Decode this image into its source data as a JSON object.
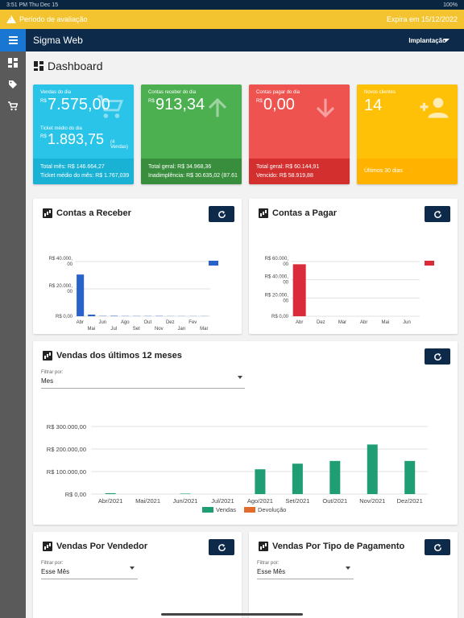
{
  "statusbar": {
    "time": "3:51 PM",
    "date": "Thu Dec 15",
    "battery": "100%"
  },
  "trial": {
    "label": "Período de avaliação",
    "expires": "Expira em 15/12/2022"
  },
  "app": {
    "title": "Sigma Web",
    "environment": "Implantação"
  },
  "sidebar": {
    "items": [
      {
        "icon": "dashboard-icon"
      },
      {
        "icon": "tag-icon"
      },
      {
        "icon": "cart-icon"
      }
    ]
  },
  "page": {
    "title": "Dashboard"
  },
  "cards": {
    "sales": {
      "label": "Vendas do dia",
      "currency": "R$",
      "value": "7.575,00",
      "ticket_label": "Ticket médio do dia",
      "ticket_value": "1.893,75",
      "ticket_extra": "(4 Vendas)",
      "foot1": "Total mês: R$ 146.664,27",
      "foot2": "Ticket médio do mês: R$ 1.767,039",
      "color": "#29c4e8",
      "foot_color": "#1ab2d4"
    },
    "receivable": {
      "label": "Contas receber do dia",
      "currency": "R$",
      "value": "913,34",
      "foot1": "Total geral: R$ 34.968,36",
      "foot2": "Inadimplência: R$ 30.635,02 (87.61",
      "color": "#4caf50",
      "foot_color": "#388e3c"
    },
    "payable": {
      "label": "Contas pagar do dia",
      "currency": "R$",
      "value": "0,00",
      "foot1": "Total geral: R$ 60.144,91",
      "foot2": "Vencido: R$ 58.919,88",
      "color": "#ef5350",
      "foot_color": "#d32f2f"
    },
    "clients": {
      "label": "Novos clientes",
      "value": "14",
      "foot1": "Últimos 30 dias",
      "color": "#ffc107",
      "foot_color": "#ffb300"
    }
  },
  "receber": {
    "title": "Contas a Receber",
    "chart_data": {
      "type": "bar",
      "categories": [
        "Abr",
        "Mai",
        "Jun",
        "Jul",
        "Ago",
        "Set",
        "Out",
        "Nov",
        "Dez",
        "Jan",
        "Fev",
        "Mar"
      ],
      "tick_labels": [
        "R$ 0,00",
        "R$ 20.000,00",
        "R$ 40.000,00"
      ],
      "values": [
        30500,
        1200,
        200,
        300,
        150,
        150,
        150,
        200,
        100,
        100,
        100,
        100
      ],
      "ylim": [
        0,
        40000
      ],
      "color": "#2962c8"
    }
  },
  "pagar": {
    "title": "Contas a Pagar",
    "chart_data": {
      "type": "bar",
      "categories": [
        "Abr",
        "Mai",
        "Jun",
        "Dez",
        "Mar",
        "Abr",
        "Mai",
        "Jun"
      ],
      "tick_labels": [
        "R$ 0,00",
        "R$ 20.000,00",
        "R$ 40.000,00",
        "R$ 60.000,00"
      ],
      "values": [
        57000,
        0,
        0,
        0,
        0,
        0,
        0,
        0
      ],
      "ylim": [
        0,
        60000
      ],
      "color": "#d92b3a"
    }
  },
  "vendas12": {
    "title": "Vendas dos últimos 12 meses",
    "filter_label": "Filtrar por:",
    "filter_value": "Mes",
    "chart_data": {
      "type": "bar",
      "categories": [
        "Abr/2021",
        "Mai/2021",
        "Jun/2021",
        "Jul/2021",
        "Ago/2021",
        "Set/2021",
        "Out/2021",
        "Nov/2021",
        "Dez/2021"
      ],
      "tick_labels": [
        "R$ 0,00",
        "R$ 100.000,00",
        "R$ 200.000,00",
        "R$ 300.000,00"
      ],
      "ylim": [
        0,
        300000
      ],
      "series": [
        {
          "name": "Vendas",
          "color": "#1f9d74",
          "values": [
            4000,
            0,
            2000,
            0,
            110000,
            135000,
            147000,
            220000,
            147000
          ]
        },
        {
          "name": "Devolução",
          "color": "#e36b2c",
          "values": [
            0,
            0,
            0,
            0,
            0,
            0,
            0,
            0,
            0
          ]
        }
      ]
    }
  },
  "vendedor": {
    "title": "Vendas Por Vendedor",
    "filter_label": "Filtrar por:",
    "filter_value": "Esse Mês"
  },
  "pagamento": {
    "title": "Vendas Por Tipo de Pagamento",
    "filter_label": "Filtrar por:",
    "filter_value": "Esse Mês"
  }
}
